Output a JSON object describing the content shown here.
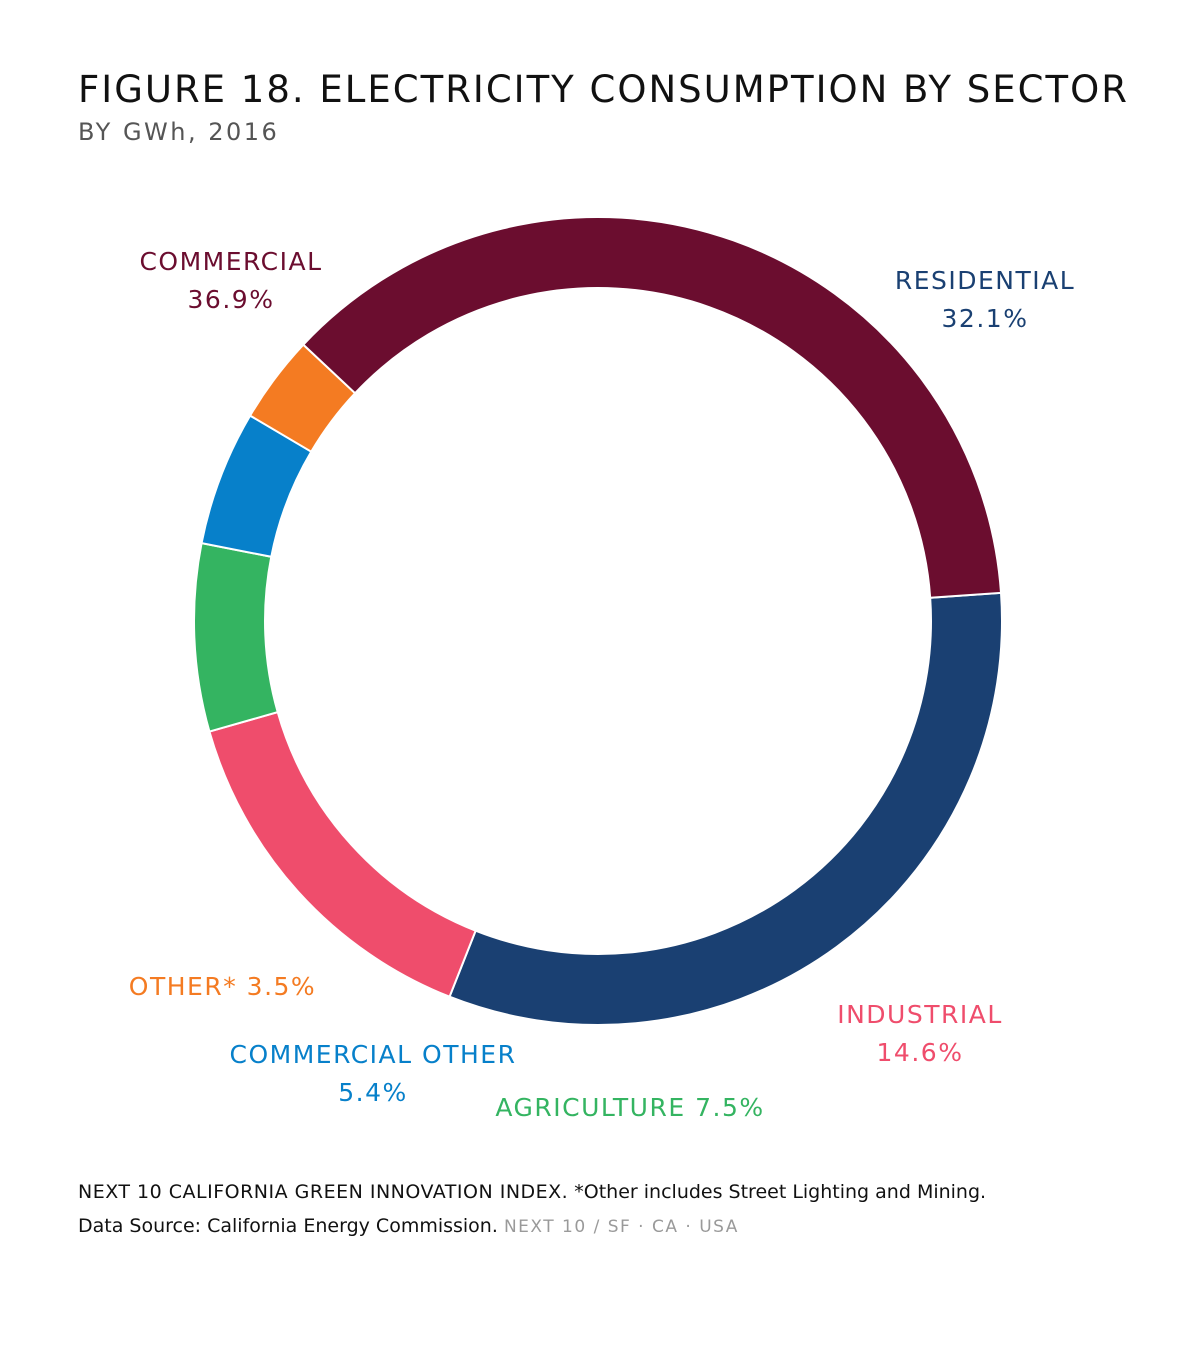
{
  "title": "FIGURE 18. ELECTRICITY CONSUMPTION BY SECTOR",
  "subtitle": "BY GWh, 2016",
  "chart_data": {
    "type": "pie",
    "variant": "donut",
    "title": "FIGURE 18. ELECTRICITY CONSUMPTION BY SECTOR",
    "subtitle": "BY GWh, 2016",
    "legend": "none (direct labels)",
    "slices": [
      {
        "label": "RESIDENTIAL",
        "value": 32.1,
        "value_label": "32.1%",
        "color": "#1a4072"
      },
      {
        "label": "INDUSTRIAL",
        "value": 14.6,
        "value_label": "14.6%",
        "color": "#ef4d6c"
      },
      {
        "label": "AGRICULTURE",
        "value": 7.5,
        "value_label": "7.5%",
        "color": "#34b461"
      },
      {
        "label": "COMMERCIAL OTHER",
        "value": 5.4,
        "value_label": "5.4%",
        "color": "#0780ca"
      },
      {
        "label": "OTHER*",
        "value": 3.5,
        "value_label": "3.5%",
        "color": "#f47b22"
      },
      {
        "label": "COMMERCIAL",
        "value": 36.9,
        "value_label": "36.9%",
        "color": "#6b0d2f"
      }
    ]
  },
  "footer": {
    "line1_org": "NEXT 10 CALIFORNIA GREEN INNOVATION INDEX.",
    "line1_note": "*Other includes Street Lighting and Mining.",
    "line2_source": "Data Source: California Energy Commission.",
    "line2_tag": "NEXT 10  /  SF · CA · USA"
  }
}
